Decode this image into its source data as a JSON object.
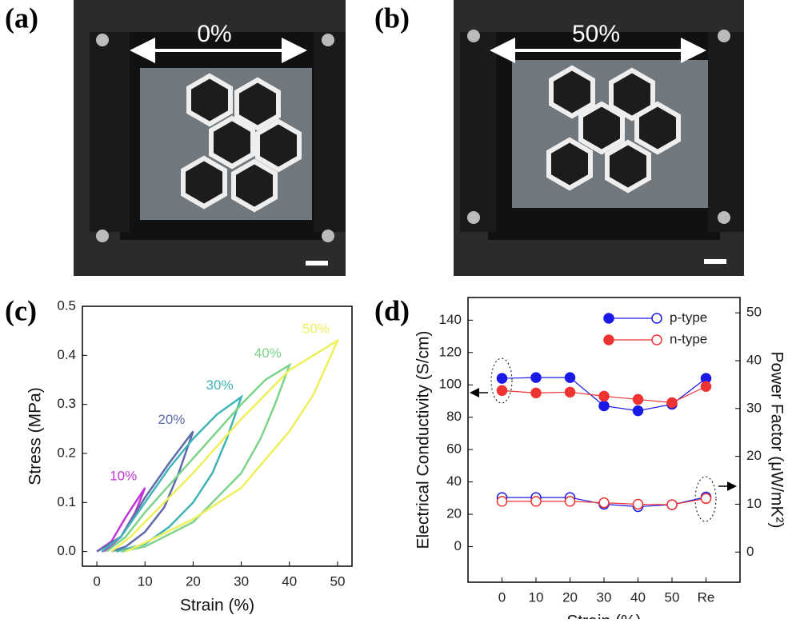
{
  "photos": [
    {
      "label": "(a)",
      "strain": "0%"
    },
    {
      "label": "(b)",
      "strain": "50%"
    }
  ],
  "chart_data": [
    {
      "type": "line",
      "label": "(c)",
      "xlabel": "Strain (%)",
      "ylabel": "Stress (MPa)",
      "xlim": [
        -3,
        53
      ],
      "xticks": [
        0,
        10,
        20,
        30,
        40,
        50
      ],
      "ylim": [
        -0.03,
        0.5
      ],
      "yticks": [
        {
          "value": 0,
          "label": "0.0"
        },
        0.1,
        0.2,
        0.3,
        0.4,
        0.5
      ],
      "series": [
        {
          "name": "10%",
          "color": "#c236d6",
          "x": [
            0,
            3,
            6,
            10,
            8,
            5,
            2,
            1
          ],
          "values": [
            0,
            0.02,
            0.07,
            0.13,
            0.08,
            0.03,
            0.003,
            0
          ]
        },
        {
          "name": "20%",
          "color": "#5f6aaa",
          "x": [
            0,
            5,
            10,
            15,
            20,
            17,
            14,
            10,
            6,
            3
          ],
          "values": [
            0,
            0.03,
            0.11,
            0.18,
            0.245,
            0.16,
            0.09,
            0.04,
            0.01,
            0
          ]
        },
        {
          "name": "30%",
          "color": "#3fb3b8",
          "x": [
            1,
            5,
            10,
            15,
            20,
            25,
            30,
            27,
            24,
            20,
            15,
            10,
            4
          ],
          "values": [
            0,
            0.03,
            0.1,
            0.17,
            0.23,
            0.28,
            0.315,
            0.23,
            0.16,
            0.1,
            0.05,
            0.015,
            0
          ]
        },
        {
          "name": "40%",
          "color": "#7dd38a",
          "x": [
            2,
            6,
            10,
            20,
            30,
            35,
            40,
            37,
            34,
            30,
            20,
            10,
            5
          ],
          "values": [
            0,
            0.03,
            0.08,
            0.19,
            0.3,
            0.35,
            0.38,
            0.3,
            0.23,
            0.16,
            0.06,
            0.01,
            0
          ]
        },
        {
          "name": "50%",
          "color": "#eef05a",
          "x": [
            3,
            7,
            10,
            20,
            30,
            40,
            45,
            50,
            45,
            40,
            30,
            20,
            10,
            6
          ],
          "values": [
            0,
            0.03,
            0.06,
            0.16,
            0.27,
            0.37,
            0.4,
            0.43,
            0.32,
            0.245,
            0.13,
            0.066,
            0.018,
            0
          ]
        }
      ]
    },
    {
      "type": "line",
      "label": "(d)",
      "xlabel": "Strain (%)",
      "ylabel": "Electrical Conductivity (S/cm)",
      "y2label": "Power Factor (μW/mK²)",
      "categories": [
        "0",
        "10",
        "20",
        "30",
        "40",
        "50",
        "Re"
      ],
      "ylim": [
        -22,
        154
      ],
      "yticks": [
        0,
        20,
        40,
        60,
        80,
        100,
        120,
        140
      ],
      "y2lim": [
        -6.3,
        53.2
      ],
      "y2ticks": [
        0,
        10,
        20,
        30,
        40,
        50
      ],
      "legend": "upper right",
      "series": [
        {
          "name": "p-type",
          "color": "#1a1ae6",
          "marker": "filled",
          "values": [
            104,
            104.5,
            104.5,
            87,
            84,
            88,
            104
          ]
        },
        {
          "name": "n-type",
          "color": "#ee3333",
          "marker": "filled",
          "values": [
            96.5,
            95,
            95.5,
            93,
            91,
            89,
            99
          ]
        },
        {
          "color": "#1a1ae6",
          "marker": "open",
          "axis": "y2",
          "values": [
            11.4,
            11.4,
            11.4,
            10,
            9.5,
            9.9,
            11.5
          ]
        },
        {
          "color": "#ee3333",
          "marker": "open",
          "axis": "y2",
          "values": [
            10.6,
            10.6,
            10.6,
            10.3,
            10,
            9.9,
            11.2
          ]
        }
      ]
    }
  ]
}
